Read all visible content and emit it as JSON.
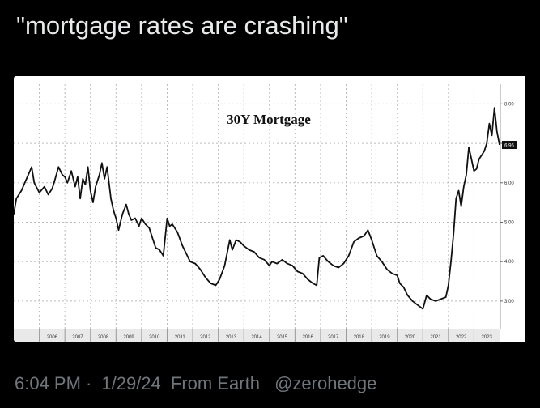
{
  "tweet": {
    "text": "\"mortgage rates are crashing\"",
    "time": "6:04 PM",
    "date": "1/29/24",
    "source": "From Earth",
    "handle": "@zerohedge",
    "sep": "·"
  },
  "colors": {
    "background": "#000000",
    "text": "#e7e9ea",
    "muted": "#71767b",
    "line": "#111111"
  },
  "chart_data": {
    "type": "line",
    "title": "30Y Mortgage",
    "xlabel": "",
    "ylabel": "",
    "x_ticks": [
      "2006",
      "2007",
      "2008",
      "2009",
      "2010",
      "2011",
      "2012",
      "2013",
      "2014",
      "2015",
      "2016",
      "2017",
      "2018",
      "2019",
      "2020",
      "2021",
      "2022",
      "2023"
    ],
    "y_ticks": [
      "3.00",
      "4.00",
      "5.00",
      "6.00",
      "7.00",
      "8.00"
    ],
    "ylim": [
      2.3,
      8.5
    ],
    "xlim": [
      2005.0,
      2024.0
    ],
    "last_value_label": "6.96",
    "last_value": 6.96,
    "grid": true,
    "series": [
      {
        "x": [
          2005.0,
          2005.1,
          2005.3,
          2005.5,
          2005.7,
          2005.8,
          2006.0,
          2006.2,
          2006.35,
          2006.5,
          2006.6,
          2006.75,
          2006.9,
          2007.0,
          2007.1,
          2007.25,
          2007.4,
          2007.5,
          2007.6,
          2007.7,
          2007.8,
          2007.9,
          2008.0,
          2008.1,
          2008.2,
          2008.35,
          2008.45,
          2008.55,
          2008.65,
          2008.8,
          2008.9,
          2009.0,
          2009.1,
          2009.25,
          2009.4,
          2009.5,
          2009.6,
          2009.75,
          2009.9,
          2010.0,
          2010.15,
          2010.3,
          2010.45,
          2010.55,
          2010.7,
          2010.85,
          2011.0,
          2011.1,
          2011.2,
          2011.4,
          2011.6,
          2011.75,
          2011.9,
          2012.1,
          2012.3,
          2012.5,
          2012.7,
          2012.9,
          2013.05,
          2013.25,
          2013.45,
          2013.55,
          2013.7,
          2013.85,
          2014.0,
          2014.2,
          2014.4,
          2014.6,
          2014.8,
          2015.0,
          2015.1,
          2015.3,
          2015.5,
          2015.7,
          2015.9,
          2016.1,
          2016.3,
          2016.5,
          2016.7,
          2016.85,
          2016.95,
          2017.1,
          2017.3,
          2017.5,
          2017.7,
          2017.9,
          2018.1,
          2018.3,
          2018.5,
          2018.7,
          2018.85,
          2019.0,
          2019.2,
          2019.4,
          2019.6,
          2019.8,
          2020.0,
          2020.1,
          2020.25,
          2020.4,
          2020.6,
          2020.8,
          2021.0,
          2021.15,
          2021.3,
          2021.5,
          2021.7,
          2021.9,
          2022.0,
          2022.1,
          2022.2,
          2022.3,
          2022.4,
          2022.5,
          2022.6,
          2022.7,
          2022.8,
          2022.9,
          2023.0,
          2023.1,
          2023.2,
          2023.3,
          2023.4,
          2023.5,
          2023.6,
          2023.7,
          2023.8,
          2023.9,
          2024.0
        ],
        "y": [
          5.2,
          5.6,
          5.8,
          6.1,
          6.4,
          6.0,
          5.75,
          5.9,
          5.7,
          5.85,
          6.05,
          6.4,
          6.2,
          6.15,
          6.0,
          6.3,
          5.9,
          6.15,
          5.6,
          6.1,
          5.95,
          6.4,
          5.8,
          5.5,
          5.9,
          6.2,
          6.5,
          6.1,
          6.4,
          5.6,
          5.3,
          5.1,
          4.8,
          5.2,
          5.45,
          5.2,
          5.05,
          5.1,
          4.9,
          5.1,
          4.95,
          4.85,
          4.55,
          4.35,
          4.3,
          4.15,
          5.1,
          4.9,
          4.95,
          4.75,
          4.4,
          4.2,
          4.0,
          3.95,
          3.8,
          3.6,
          3.45,
          3.4,
          3.55,
          3.9,
          4.55,
          4.3,
          4.55,
          4.5,
          4.4,
          4.3,
          4.25,
          4.1,
          4.05,
          3.9,
          4.0,
          3.95,
          4.05,
          3.95,
          3.9,
          3.75,
          3.7,
          3.55,
          3.45,
          3.4,
          4.1,
          4.15,
          4.0,
          3.9,
          3.85,
          3.95,
          4.15,
          4.5,
          4.6,
          4.65,
          4.8,
          4.55,
          4.15,
          4.0,
          3.8,
          3.7,
          3.65,
          3.45,
          3.35,
          3.15,
          3.0,
          2.9,
          2.8,
          3.15,
          3.05,
          3.0,
          3.05,
          3.1,
          3.4,
          4.0,
          4.7,
          5.6,
          5.8,
          5.4,
          5.9,
          6.2,
          6.9,
          6.6,
          6.3,
          6.35,
          6.6,
          6.7,
          6.8,
          7.0,
          7.5,
          7.2,
          7.9,
          7.3,
          6.96
        ]
      }
    ]
  }
}
